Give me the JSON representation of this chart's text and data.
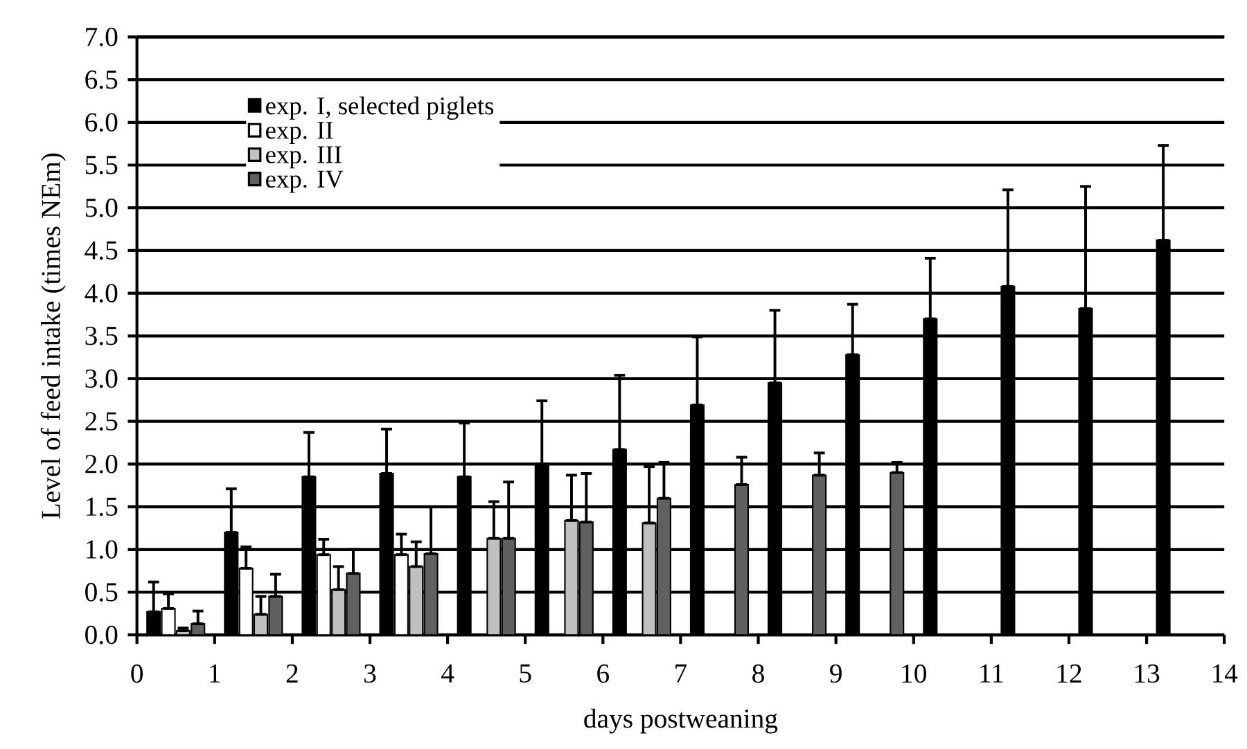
{
  "chart_data": {
    "type": "bar",
    "xlabel": "days postweaning",
    "ylabel": "Level of feed intake (times NEm)",
    "x": [
      0.5,
      1.5,
      2.5,
      3.5,
      4.5,
      5.5,
      6.5,
      7.5,
      8.5,
      9.5,
      10.5,
      11.5,
      12.5,
      13.5
    ],
    "xlim": [
      0,
      14
    ],
    "xticks": [
      0,
      1,
      2,
      3,
      4,
      5,
      6,
      7,
      8,
      9,
      10,
      11,
      12,
      13,
      14
    ],
    "ylim": [
      0,
      7
    ],
    "yticks": [
      {
        "value": 0,
        "label": "0.0"
      },
      0.5,
      {
        "value": 1,
        "label": "1.0"
      },
      1.5,
      {
        "value": 2,
        "label": "2.0"
      },
      2.5,
      {
        "value": 3,
        "label": "3.0"
      },
      3.5,
      {
        "value": 4,
        "label": "4.0"
      },
      4.5,
      {
        "value": 5,
        "label": "5.0"
      },
      5.5,
      {
        "value": 6,
        "label": "6.0"
      },
      6.5,
      {
        "value": 7,
        "label": "7.0"
      }
    ],
    "grid": "y",
    "legend": "top left",
    "series": [
      {
        "name": "exp. I, selected piglets",
        "color": "#000000",
        "values": [
          0.27,
          1.2,
          1.85,
          1.89,
          1.85,
          2.0,
          2.17,
          2.69,
          2.95,
          3.28,
          3.7,
          4.08,
          3.82,
          4.62
        ],
        "errors": [
          [
            0.27,
            0.62
          ],
          [
            1.2,
            1.71
          ],
          [
            1.85,
            2.37
          ],
          [
            1.89,
            2.41
          ],
          [
            1.85,
            2.48
          ],
          [
            2.0,
            2.74
          ],
          [
            2.17,
            3.04
          ],
          [
            2.69,
            3.49
          ],
          [
            2.95,
            3.8
          ],
          [
            3.28,
            3.87
          ],
          [
            3.7,
            4.41
          ],
          [
            4.08,
            5.21
          ],
          [
            3.82,
            5.25
          ],
          [
            4.62,
            5.73
          ]
        ]
      },
      {
        "name": "exp. II",
        "color": "#ffffff",
        "values": [
          0.31,
          0.78,
          0.94,
          0.94,
          null,
          null,
          null,
          null,
          null,
          null,
          null,
          null,
          null,
          null
        ],
        "errors": [
          [
            0.31,
            0.48
          ],
          [
            0.78,
            1.03
          ],
          [
            0.94,
            1.12
          ],
          [
            0.94,
            1.18
          ],
          null,
          null,
          null,
          null,
          null,
          null,
          null,
          null,
          null,
          null
        ]
      },
      {
        "name": "exp. III",
        "color": "#c0c0c0",
        "values": [
          0.05,
          0.24,
          0.53,
          0.8,
          1.13,
          1.34,
          1.31,
          null,
          null,
          null,
          null,
          null,
          null,
          null
        ],
        "errors": [
          [
            0.05,
            0.08
          ],
          [
            0.24,
            0.45
          ],
          [
            0.53,
            0.8
          ],
          [
            0.8,
            1.09
          ],
          [
            1.13,
            1.56
          ],
          [
            1.34,
            1.87
          ],
          [
            1.31,
            1.97
          ],
          null,
          null,
          null,
          null,
          null,
          null,
          null
        ]
      },
      {
        "name": "exp. IV",
        "color": "#606060",
        "values": [
          0.13,
          0.45,
          0.72,
          0.95,
          1.13,
          1.32,
          1.6,
          1.76,
          1.87,
          1.9,
          null,
          null,
          null,
          null
        ],
        "errors": [
          [
            0.13,
            0.28
          ],
          [
            0.45,
            0.71
          ],
          [
            0.72,
            1.0
          ],
          [
            0.95,
            1.5
          ],
          [
            1.13,
            1.79
          ],
          [
            1.32,
            1.89
          ],
          [
            1.6,
            2.02
          ],
          [
            1.76,
            2.08
          ],
          [
            1.87,
            2.13
          ],
          [
            1.9,
            2.02
          ],
          null,
          null,
          null,
          null
        ]
      }
    ]
  }
}
